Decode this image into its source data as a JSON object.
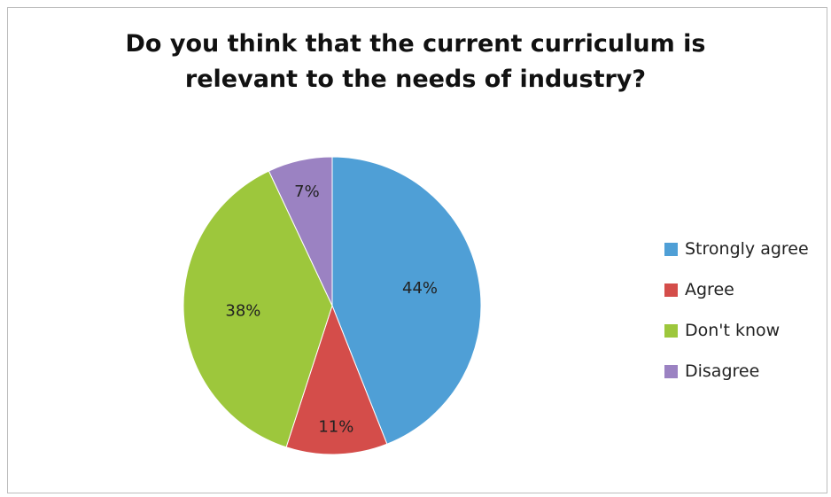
{
  "chart_data": {
    "type": "pie",
    "title": "Do you think that the current curriculum is relevant to the needs of industry?",
    "title_lines": [
      "Do you think that the current curriculum is",
      "relevant to the needs of industry?"
    ],
    "legend_position": "right",
    "slices": [
      {
        "label": "Strongly agree",
        "value": 44,
        "value_label": "44%",
        "color": "#4F9FD6"
      },
      {
        "label": "Agree",
        "value": 11,
        "value_label": "11%",
        "color": "#D44D4A"
      },
      {
        "label": "Don't know",
        "value": 38,
        "value_label": "38%",
        "color": "#9DC73C"
      },
      {
        "label": "Disagree",
        "value": 7,
        "value_label": "7%",
        "color": "#9B82C2"
      }
    ]
  }
}
